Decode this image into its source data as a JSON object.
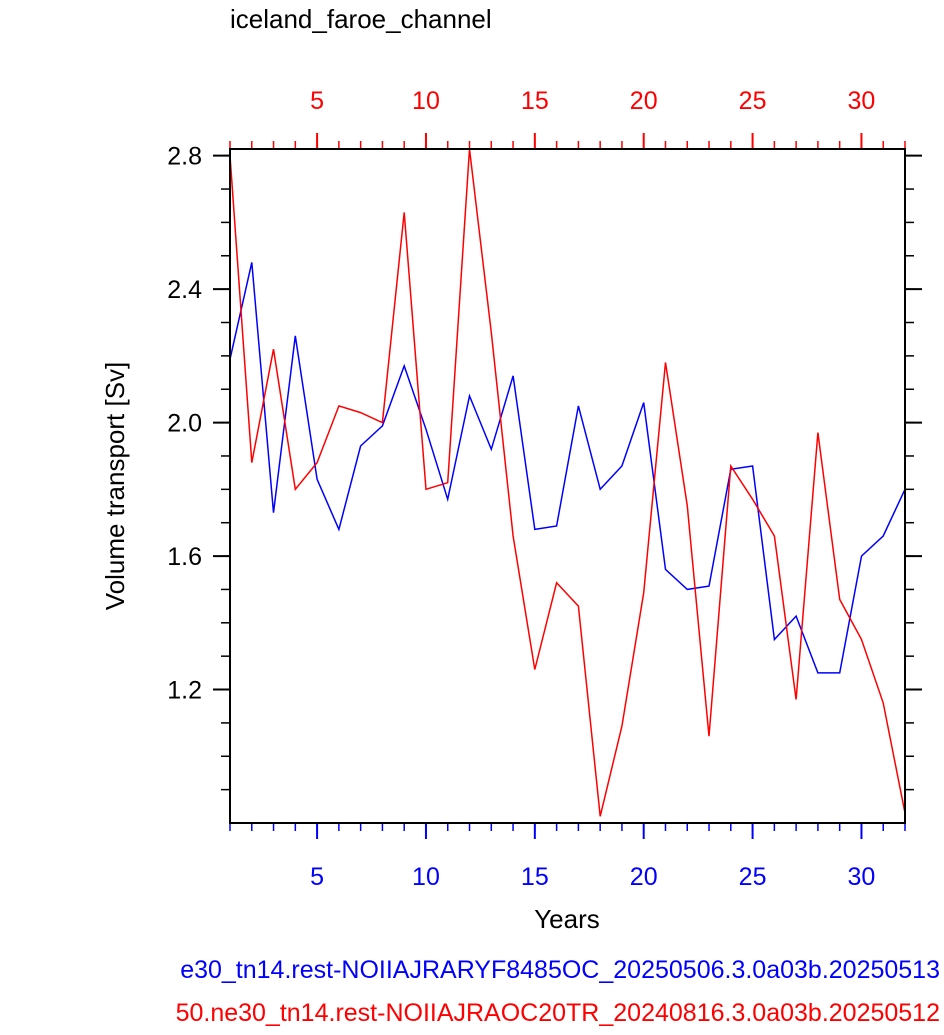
{
  "chart_data": {
    "type": "line",
    "title": "iceland_faroe_channel",
    "xlabel": "Years",
    "ylabel": "Volume transport [Sv]",
    "xlim": [
      1,
      32
    ],
    "ylim": [
      0.8,
      2.82
    ],
    "yticks": [
      1.2,
      1.6,
      2.0,
      2.4,
      2.8
    ],
    "ytick_labels": [
      "1.2",
      "1.6",
      "2.0",
      "2.4",
      "2.8"
    ],
    "xticks_bottom": [
      5,
      10,
      15,
      20,
      25,
      30
    ],
    "xtick_labels_bottom": [
      "5",
      "10",
      "15",
      "20",
      "25",
      "30"
    ],
    "xticks_top": [
      5,
      10,
      15,
      20,
      25,
      30
    ],
    "xtick_labels_top": [
      "5",
      "10",
      "15",
      "20",
      "25",
      "30"
    ],
    "grid": false,
    "series": [
      {
        "name": "e30_tn14.rest-NOIIAJRARYF8485OC_20250506.3.0a03b.20250513",
        "color": "#0000ff",
        "x": [
          1,
          2,
          3,
          4,
          5,
          6,
          7,
          8,
          9,
          10,
          11,
          12,
          13,
          14,
          15,
          16,
          17,
          18,
          19,
          20,
          21,
          22,
          23,
          24,
          25,
          26,
          27,
          28,
          29,
          30,
          31,
          32
        ],
        "values": [
          2.19,
          2.48,
          1.73,
          2.26,
          1.83,
          1.68,
          1.93,
          1.99,
          2.17,
          1.98,
          1.77,
          2.08,
          1.92,
          2.14,
          1.68,
          1.69,
          2.05,
          1.8,
          1.87,
          2.06,
          1.56,
          1.5,
          1.51,
          1.86,
          1.87,
          1.35,
          1.42,
          1.25,
          1.25,
          1.6,
          1.66,
          1.8
        ]
      },
      {
        "name": "50.ne30_tn14.rest-NOIIAJRAOC20TR_20240816.3.0a03b.20250512",
        "color": "#ff0000",
        "x": [
          1,
          2,
          3,
          4,
          5,
          6,
          7,
          8,
          9,
          10,
          11,
          12,
          13,
          14,
          15,
          16,
          17,
          18,
          19,
          20,
          21,
          22,
          23,
          24,
          25,
          26,
          27,
          28,
          29,
          30,
          31,
          32
        ],
        "values": [
          2.8,
          1.88,
          2.22,
          1.8,
          1.88,
          2.05,
          2.03,
          2.0,
          2.63,
          1.8,
          1.82,
          2.82,
          2.27,
          1.66,
          1.26,
          1.52,
          1.45,
          0.82,
          1.09,
          1.49,
          2.18,
          1.75,
          1.06,
          1.87,
          1.77,
          1.66,
          1.17,
          1.97,
          1.47,
          1.35,
          1.16,
          0.83
        ]
      }
    ]
  }
}
